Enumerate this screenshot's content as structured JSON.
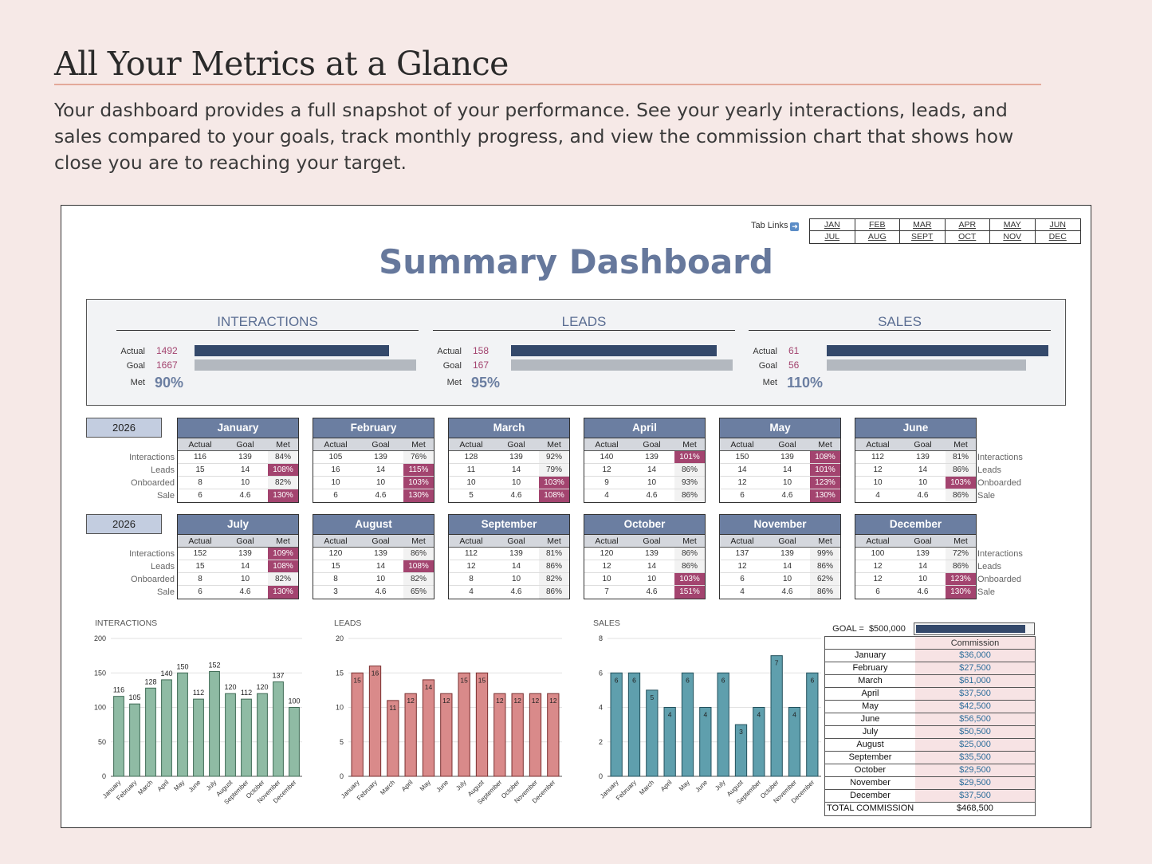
{
  "hero": {
    "title": "All Your Metrics at a Glance",
    "description": "Your dashboard provides a full snapshot of your performance. See your yearly interactions, leads, and sales compared to your goals, track monthly progress, and view the commission chart that shows how close you are to reaching your target."
  },
  "tab_links": {
    "label": "Tab Links",
    "items": [
      "JAN",
      "FEB",
      "MAR",
      "APR",
      "MAY",
      "JUN",
      "JUL",
      "AUG",
      "SEPT",
      "OCT",
      "NOV",
      "DEC"
    ]
  },
  "dashboard_title": "Summary Dashboard",
  "kpis": [
    {
      "title": "INTERACTIONS",
      "actual_label": "Actual",
      "goal_label": "Goal",
      "met_label": "Met",
      "actual": 1492,
      "goal": 1667,
      "met": "90%"
    },
    {
      "title": "LEADS",
      "actual_label": "Actual",
      "goal_label": "Goal",
      "met_label": "Met",
      "actual": 158,
      "goal": 167,
      "met": "95%"
    },
    {
      "title": "SALES",
      "actual_label": "Actual",
      "goal_label": "Goal",
      "met_label": "Met",
      "actual": 61,
      "goal": 56,
      "met": "110%"
    }
  ],
  "year": "2026",
  "row_labels": [
    "Interactions",
    "Leads",
    "Onboarded",
    "Sale"
  ],
  "col_headers": [
    "Actual",
    "Goal",
    "Met"
  ],
  "months": [
    {
      "name": "January",
      "rows": [
        [
          "116",
          "139",
          "84%"
        ],
        [
          "15",
          "14",
          "108%"
        ],
        [
          "8",
          "10",
          "82%"
        ],
        [
          "6",
          "4.6",
          "130%"
        ]
      ]
    },
    {
      "name": "February",
      "rows": [
        [
          "105",
          "139",
          "76%"
        ],
        [
          "16",
          "14",
          "115%"
        ],
        [
          "10",
          "10",
          "103%"
        ],
        [
          "6",
          "4.6",
          "130%"
        ]
      ]
    },
    {
      "name": "March",
      "rows": [
        [
          "128",
          "139",
          "92%"
        ],
        [
          "11",
          "14",
          "79%"
        ],
        [
          "10",
          "10",
          "103%"
        ],
        [
          "5",
          "4.6",
          "108%"
        ]
      ]
    },
    {
      "name": "April",
      "rows": [
        [
          "140",
          "139",
          "101%"
        ],
        [
          "12",
          "14",
          "86%"
        ],
        [
          "9",
          "10",
          "93%"
        ],
        [
          "4",
          "4.6",
          "86%"
        ]
      ]
    },
    {
      "name": "May",
      "rows": [
        [
          "150",
          "139",
          "108%"
        ],
        [
          "14",
          "14",
          "101%"
        ],
        [
          "12",
          "10",
          "123%"
        ],
        [
          "6",
          "4.6",
          "130%"
        ]
      ]
    },
    {
      "name": "June",
      "rows": [
        [
          "112",
          "139",
          "81%"
        ],
        [
          "12",
          "14",
          "86%"
        ],
        [
          "10",
          "10",
          "103%"
        ],
        [
          "4",
          "4.6",
          "86%"
        ]
      ]
    },
    {
      "name": "July",
      "rows": [
        [
          "152",
          "139",
          "109%"
        ],
        [
          "15",
          "14",
          "108%"
        ],
        [
          "8",
          "10",
          "82%"
        ],
        [
          "6",
          "4.6",
          "130%"
        ]
      ]
    },
    {
      "name": "August",
      "rows": [
        [
          "120",
          "139",
          "86%"
        ],
        [
          "15",
          "14",
          "108%"
        ],
        [
          "8",
          "10",
          "82%"
        ],
        [
          "3",
          "4.6",
          "65%"
        ]
      ]
    },
    {
      "name": "September",
      "rows": [
        [
          "112",
          "139",
          "81%"
        ],
        [
          "12",
          "14",
          "86%"
        ],
        [
          "8",
          "10",
          "82%"
        ],
        [
          "4",
          "4.6",
          "86%"
        ]
      ]
    },
    {
      "name": "October",
      "rows": [
        [
          "120",
          "139",
          "86%"
        ],
        [
          "12",
          "14",
          "86%"
        ],
        [
          "10",
          "10",
          "103%"
        ],
        [
          "7",
          "4.6",
          "151%"
        ]
      ]
    },
    {
      "name": "November",
      "rows": [
        [
          "137",
          "139",
          "99%"
        ],
        [
          "12",
          "14",
          "86%"
        ],
        [
          "6",
          "10",
          "62%"
        ],
        [
          "4",
          "4.6",
          "86%"
        ]
      ]
    },
    {
      "name": "December",
      "rows": [
        [
          "100",
          "139",
          "72%"
        ],
        [
          "12",
          "14",
          "86%"
        ],
        [
          "12",
          "10",
          "123%"
        ],
        [
          "6",
          "4.6",
          "130%"
        ]
      ]
    }
  ],
  "colors": {
    "accent": "#6b7ea1",
    "highlight": "#a3446f",
    "navy": "#34496b",
    "green": "#8fbba4",
    "red": "#d98a8a",
    "teal": "#5f9fad"
  },
  "chart_data": [
    {
      "type": "bar",
      "title": "INTERACTIONS",
      "categories": [
        "January",
        "February",
        "March",
        "April",
        "May",
        "June",
        "July",
        "August",
        "September",
        "October",
        "November",
        "December"
      ],
      "values": [
        116,
        105,
        128,
        140,
        150,
        112,
        152,
        120,
        112,
        120,
        137,
        100
      ],
      "ylim": [
        0,
        200
      ],
      "yticks": [
        0,
        50,
        100,
        150,
        200
      ],
      "data_labels": "above",
      "grid": true
    },
    {
      "type": "bar",
      "title": "LEADS",
      "categories": [
        "January",
        "February",
        "March",
        "April",
        "May",
        "June",
        "July",
        "August",
        "September",
        "October",
        "November",
        "December"
      ],
      "values": [
        15,
        16,
        11,
        12,
        14,
        12,
        15,
        15,
        12,
        12,
        12,
        12
      ],
      "ylim": [
        0,
        20
      ],
      "yticks": [
        0,
        5,
        10,
        15,
        20
      ],
      "data_labels": "inside",
      "grid": true
    },
    {
      "type": "bar",
      "title": "SALES",
      "categories": [
        "January",
        "February",
        "March",
        "April",
        "May",
        "June",
        "July",
        "August",
        "September",
        "October",
        "November",
        "December"
      ],
      "values": [
        6,
        6,
        5,
        4,
        6,
        4,
        6,
        3,
        4,
        7,
        4,
        6
      ],
      "ylim": [
        0,
        8
      ],
      "yticks": [
        0,
        2,
        4,
        6,
        8
      ],
      "data_labels": "inside",
      "grid": true
    }
  ],
  "commission": {
    "goal_label": "GOAL =",
    "goal_value": "$500,000",
    "progress": 0.937,
    "header": "Commission",
    "rows": [
      {
        "month": "January",
        "value": "$36,000"
      },
      {
        "month": "February",
        "value": "$27,500"
      },
      {
        "month": "March",
        "value": "$61,000"
      },
      {
        "month": "April",
        "value": "$37,500"
      },
      {
        "month": "May",
        "value": "$42,500"
      },
      {
        "month": "June",
        "value": "$56,500"
      },
      {
        "month": "July",
        "value": "$50,500"
      },
      {
        "month": "August",
        "value": "$25,000"
      },
      {
        "month": "September",
        "value": "$35,500"
      },
      {
        "month": "October",
        "value": "$29,500"
      },
      {
        "month": "November",
        "value": "$29,500"
      },
      {
        "month": "December",
        "value": "$37,500"
      }
    ],
    "total_label": "TOTAL COMMISSION",
    "total_value": "$468,500"
  }
}
